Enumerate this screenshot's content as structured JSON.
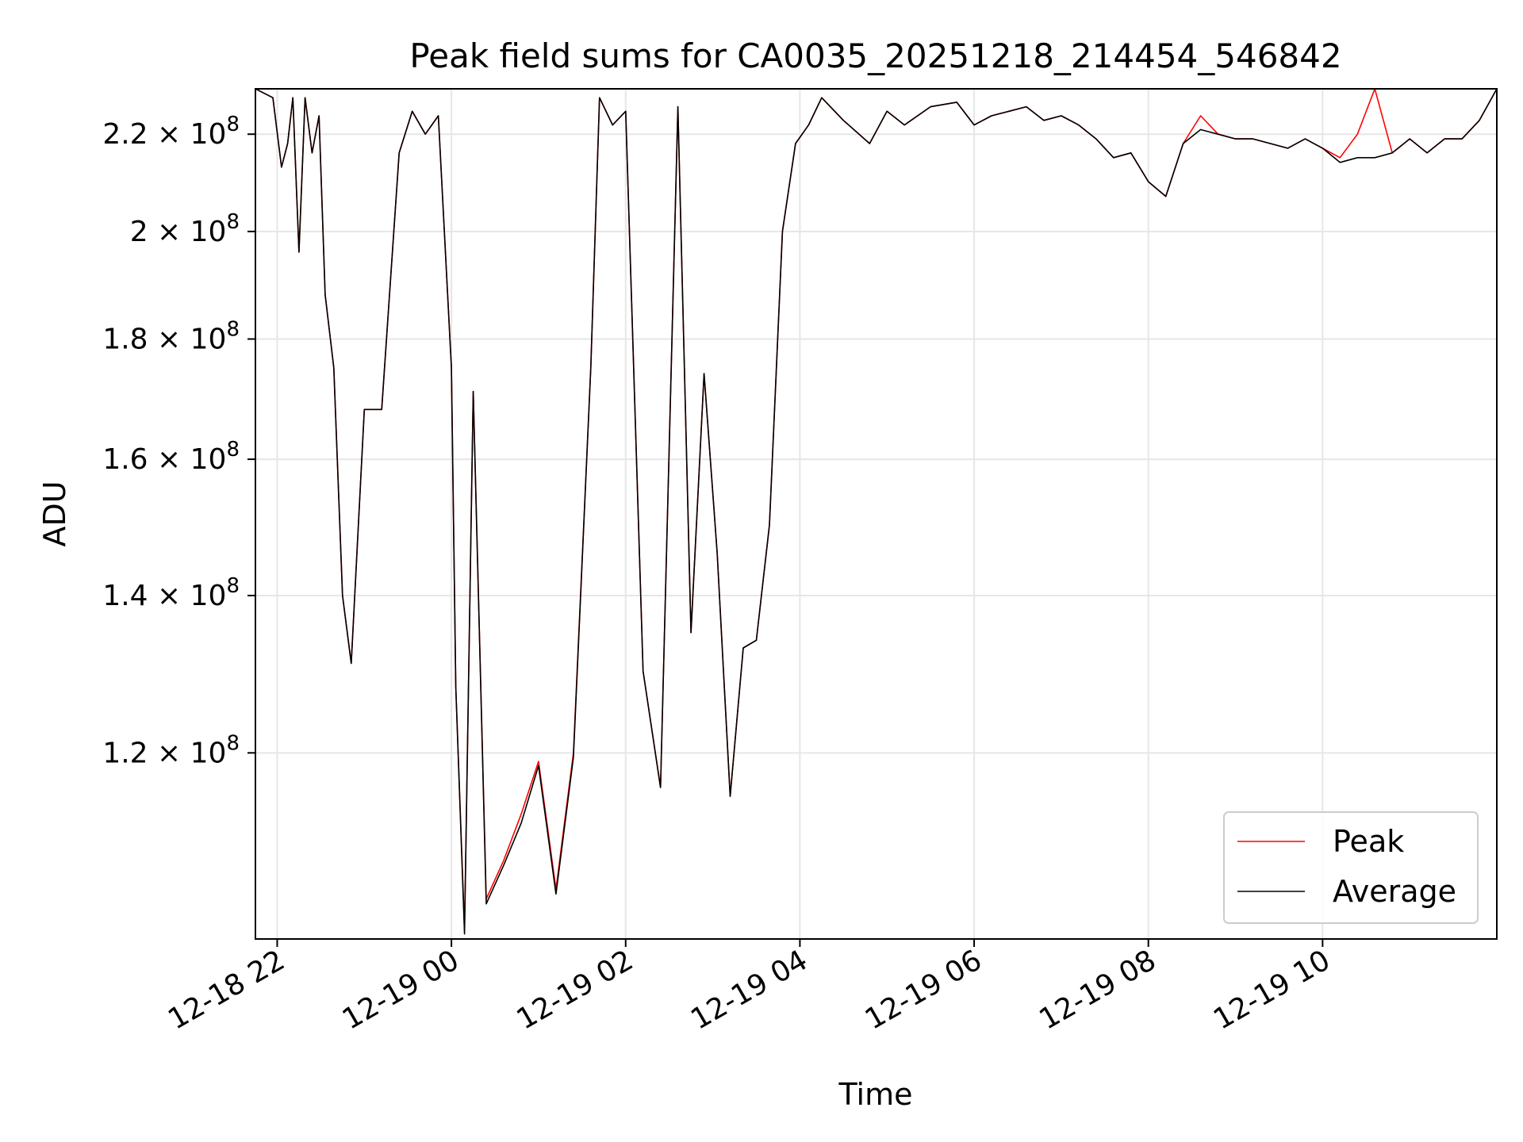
{
  "chart_data": {
    "type": "line",
    "title": "Peak field sums for CA0035_20251218_214454_546842",
    "xlabel": "Time",
    "ylabel": "ADU",
    "yscale": "log",
    "grid": true,
    "legend_position": "lower-right",
    "xlim_hours_from_2025_12_18_22_00": [
      -0.25,
      14.0
    ],
    "ylim": [
      100000000,
      230000000
    ],
    "x_ticks": [
      {
        "label": "12-18 22",
        "hours": 0
      },
      {
        "label": "12-19 00",
        "hours": 2
      },
      {
        "label": "12-19 02",
        "hours": 4
      },
      {
        "label": "12-19 04",
        "hours": 6
      },
      {
        "label": "12-19 06",
        "hours": 8
      },
      {
        "label": "12-19 08",
        "hours": 10
      },
      {
        "label": "12-19 10",
        "hours": 12
      }
    ],
    "y_ticks": [
      {
        "mantissa": "1.2",
        "value": 120000000
      },
      {
        "mantissa": "1.4",
        "value": 140000000
      },
      {
        "mantissa": "1.6",
        "value": 160000000
      },
      {
        "mantissa": "1.8",
        "value": 180000000
      },
      {
        "mantissa": "2",
        "value": 200000000
      },
      {
        "mantissa": "2.2",
        "value": 220000000
      }
    ],
    "y_tick_suffix": "× 10",
    "y_tick_exponent": "8",
    "x_unit_note": "hours since 2025-12-18 22:00",
    "x": [
      -0.25,
      -0.05,
      0.05,
      0.12,
      0.18,
      0.25,
      0.32,
      0.4,
      0.48,
      0.55,
      0.65,
      0.75,
      0.85,
      1.0,
      1.2,
      1.4,
      1.55,
      1.7,
      1.85,
      2.0,
      2.05,
      2.15,
      2.25,
      2.4,
      2.6,
      2.8,
      3.0,
      3.2,
      3.4,
      3.6,
      3.7,
      3.85,
      4.0,
      4.2,
      4.4,
      4.6,
      4.75,
      4.9,
      5.05,
      5.2,
      5.35,
      5.5,
      5.65,
      5.8,
      5.95,
      6.1,
      6.25,
      6.5,
      6.8,
      7.0,
      7.2,
      7.5,
      7.8,
      8.0,
      8.2,
      8.4,
      8.6,
      8.8,
      9.0,
      9.2,
      9.4,
      9.6,
      9.8,
      10.0,
      10.2,
      10.4,
      10.6,
      10.8,
      11.0,
      11.2,
      11.4,
      11.6,
      11.8,
      12.0,
      12.2,
      12.4,
      12.6,
      12.8,
      13.0,
      13.2,
      13.4,
      13.6,
      13.8,
      14.0
    ],
    "series": [
      {
        "name": "Peak",
        "color": "#ff0000",
        "values": [
          230000000,
          228000000,
          213000000,
          218000000,
          228000000,
          196000000,
          228000000,
          216000000,
          224000000,
          188000000,
          175000000,
          140000000,
          131000000,
          168000000,
          168000000,
          216000000,
          225000000,
          220000000,
          224000000,
          175000000,
          128000000,
          101000000,
          171000000,
          104000000,
          108000000,
          113000000,
          119000000,
          105000000,
          120000000,
          175000000,
          228000000,
          222000000,
          225000000,
          130000000,
          116000000,
          226000000,
          135000000,
          174000000,
          146000000,
          115000000,
          133000000,
          134000000,
          150000000,
          200000000,
          218000000,
          222000000,
          228000000,
          223000000,
          218000000,
          225000000,
          222000000,
          226000000,
          227000000,
          222000000,
          224000000,
          225000000,
          226000000,
          223000000,
          224000000,
          222000000,
          219000000,
          215000000,
          216000000,
          210000000,
          207000000,
          218000000,
          224000000,
          220000000,
          219000000,
          219000000,
          218000000,
          217000000,
          219000000,
          217000000,
          215000000,
          220000000,
          230000000,
          216000000,
          219000000,
          216000000,
          219000000,
          219000000,
          223000000,
          230000000
        ]
      },
      {
        "name": "Average",
        "color": "#000000",
        "values": [
          230000000,
          228000000,
          213000000,
          218000000,
          228000000,
          196000000,
          228000000,
          216000000,
          224000000,
          188000000,
          175000000,
          140000000,
          131000000,
          168000000,
          168000000,
          216000000,
          225000000,
          220000000,
          224000000,
          175000000,
          128000000,
          100500000,
          171000000,
          103500000,
          107500000,
          112000000,
          118500000,
          104500000,
          119500000,
          175000000,
          228000000,
          222000000,
          225000000,
          130000000,
          116000000,
          226000000,
          135000000,
          174000000,
          146000000,
          115000000,
          133000000,
          134000000,
          150000000,
          200000000,
          218000000,
          222000000,
          228000000,
          223000000,
          218000000,
          225000000,
          222000000,
          226000000,
          227000000,
          222000000,
          224000000,
          225000000,
          226000000,
          223000000,
          224000000,
          222000000,
          219000000,
          215000000,
          216000000,
          210000000,
          207000000,
          218000000,
          221000000,
          220000000,
          219000000,
          219000000,
          218000000,
          217000000,
          219000000,
          217000000,
          214000000,
          215000000,
          215000000,
          216000000,
          219000000,
          216000000,
          219000000,
          219000000,
          223000000,
          230000000
        ]
      }
    ],
    "legend": [
      {
        "label": "Peak",
        "color": "#ff0000"
      },
      {
        "label": "Average",
        "color": "#000000"
      }
    ]
  }
}
